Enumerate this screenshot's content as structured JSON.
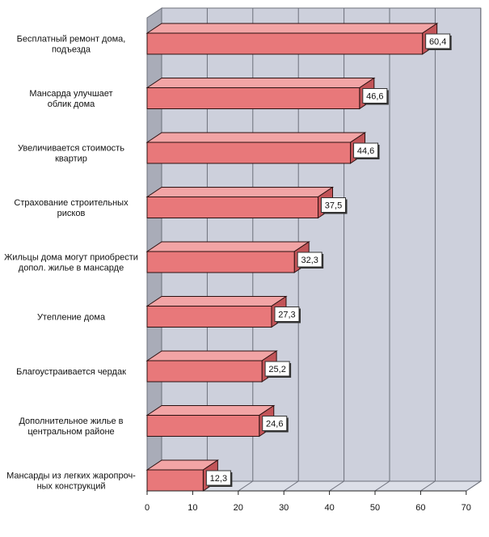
{
  "chart_data": {
    "type": "bar",
    "orientation": "horizontal",
    "style": "3d",
    "categories": [
      [
        "Бесплатный ремонт дома,",
        "подъезда"
      ],
      [
        "Мансарда улучшает",
        "облик дома"
      ],
      [
        "Увеличивается стоимость",
        "квартир"
      ],
      [
        "Страхование строительных",
        "рисков"
      ],
      [
        "Жильцы дома могут приобрести",
        "допол. жилье в мансарде"
      ],
      [
        "Утепление дома"
      ],
      [
        "Благоустраивается чердак"
      ],
      [
        "Дополнительное жилье в",
        "центральном районе"
      ],
      [
        "Мансарды из легких жаропроч-",
        "ных конструкций"
      ]
    ],
    "values": [
      60.4,
      46.6,
      44.6,
      37.5,
      32.3,
      27.3,
      25.2,
      24.6,
      12.3
    ],
    "value_labels": [
      "60,4",
      "46,6",
      "44,6",
      "37,5",
      "32,3",
      "27,3",
      "25,2",
      "24,6",
      "12,3"
    ],
    "xlim": [
      0,
      70
    ],
    "xticks": [
      0,
      10,
      20,
      30,
      40,
      50,
      60,
      70
    ],
    "grid": true,
    "colors": {
      "bar_front": "#e8787a",
      "bar_top": "#f2a4a5",
      "bar_side": "#c25458",
      "bar_edge": "#2a1010",
      "wall": "#cdd0dc",
      "wall_left": "#a9acb8",
      "floor": "#dcdfe8",
      "grid": "#6c6f7a"
    }
  }
}
